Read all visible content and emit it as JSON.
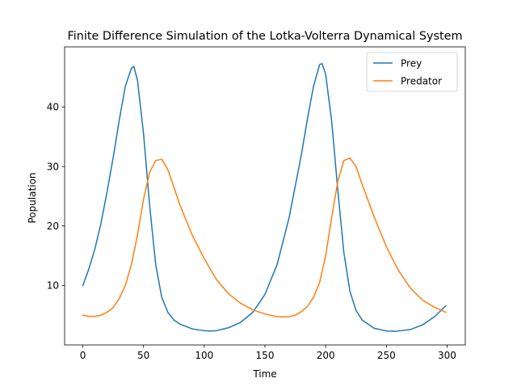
{
  "chart_data": {
    "type": "line",
    "title": "Finite Difference Simulation of the Lotka-Volterra Dynamical System",
    "xlabel": "Time",
    "ylabel": "Population",
    "xlim": [
      -15,
      315
    ],
    "ylim": [
      0.0,
      50.1
    ],
    "xticks": [
      0,
      50,
      100,
      150,
      200,
      250,
      300
    ],
    "yticks": [
      10,
      20,
      30,
      40
    ],
    "grid": false,
    "legend_position": "top-right",
    "series": [
      {
        "name": "Prey",
        "color": "#1f77b4",
        "x": [
          0,
          5,
          10,
          15,
          20,
          25,
          30,
          35,
          40,
          42,
          45,
          50,
          55,
          60,
          65,
          70,
          75,
          80,
          90,
          100,
          105,
          110,
          120,
          130,
          140,
          150,
          160,
          170,
          180,
          185,
          190,
          195,
          197,
          200,
          205,
          210,
          215,
          220,
          225,
          230,
          240,
          250,
          258,
          270,
          280,
          290,
          299
        ],
        "y": [
          10.0,
          12.8,
          16.2,
          20.5,
          25.8,
          31.5,
          37.8,
          43.5,
          46.5,
          46.8,
          44.5,
          35.5,
          23.5,
          13.5,
          8.0,
          5.5,
          4.2,
          3.5,
          2.7,
          2.4,
          2.35,
          2.4,
          2.9,
          3.8,
          5.5,
          8.5,
          13.5,
          21.5,
          32.0,
          38.0,
          43.5,
          47.1,
          47.3,
          45.5,
          37.5,
          26.0,
          15.5,
          9.0,
          5.8,
          4.2,
          2.8,
          2.35,
          2.3,
          2.6,
          3.4,
          4.8,
          6.6
        ]
      },
      {
        "name": "Predator",
        "color": "#ff7f0e",
        "x": [
          0,
          5,
          10,
          15,
          20,
          25,
          30,
          35,
          40,
          45,
          50,
          55,
          60,
          65,
          70,
          75,
          80,
          90,
          100,
          110,
          120,
          130,
          140,
          150,
          160,
          165,
          170,
          175,
          180,
          185,
          190,
          195,
          200,
          205,
          210,
          215,
          220,
          225,
          230,
          240,
          250,
          260,
          270,
          280,
          290,
          299
        ],
        "y": [
          5.0,
          4.8,
          4.8,
          5.0,
          5.5,
          6.3,
          7.8,
          10.0,
          13.5,
          18.5,
          24.5,
          29.0,
          31.0,
          31.2,
          29.5,
          26.5,
          23.5,
          18.5,
          14.5,
          11.0,
          8.6,
          7.0,
          5.9,
          5.2,
          4.75,
          4.7,
          4.75,
          5.0,
          5.6,
          6.5,
          8.0,
          10.5,
          15.0,
          21.5,
          27.5,
          31.0,
          31.4,
          30.0,
          27.0,
          21.5,
          16.5,
          12.5,
          9.5,
          7.5,
          6.3,
          5.5
        ]
      }
    ]
  }
}
